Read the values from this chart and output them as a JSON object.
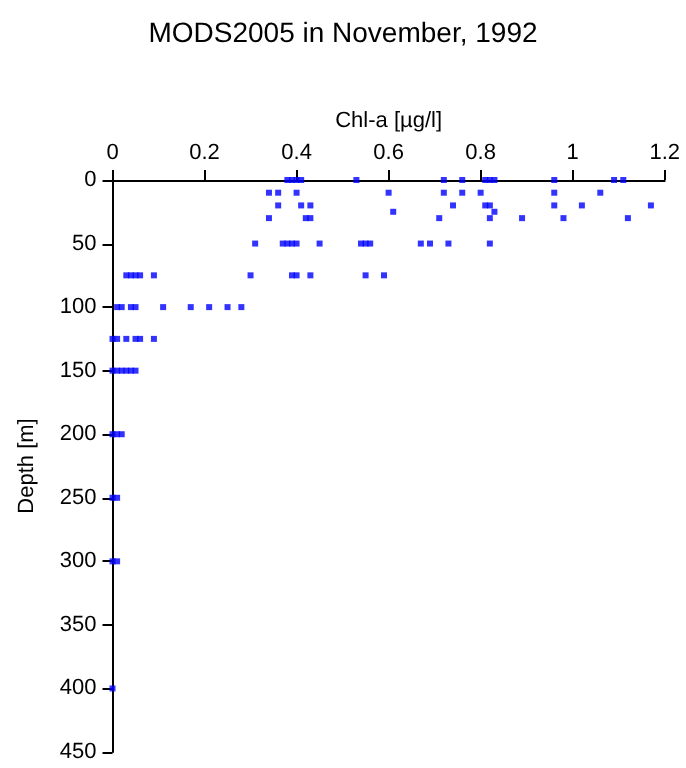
{
  "chart_data": {
    "type": "scatter",
    "title": "MODS2005 in November, 1992",
    "xlabel": "Chl-a [µg/l]",
    "ylabel": "Depth [m]",
    "x": [
      0.38,
      0.39,
      0.4,
      0.41,
      0.53,
      0.72,
      0.76,
      0.81,
      0.82,
      0.83,
      0.96,
      1.09,
      1.11,
      0.34,
      0.36,
      0.4,
      0.6,
      0.72,
      0.76,
      0.8,
      0.96,
      1.06,
      0.36,
      0.41,
      0.43,
      0.74,
      0.81,
      0.82,
      0.96,
      1.02,
      1.17,
      0.61,
      0.83,
      0.34,
      0.42,
      0.43,
      0.71,
      0.82,
      0.89,
      0.98,
      1.12,
      0.31,
      0.37,
      0.38,
      0.39,
      0.4,
      0.45,
      0.54,
      0.55,
      0.56,
      0.67,
      0.69,
      0.73,
      0.82,
      0.03,
      0.04,
      0.05,
      0.06,
      0.09,
      0.3,
      0.39,
      0.4,
      0.43,
      0.55,
      0.59,
      0.01,
      0.02,
      0.04,
      0.05,
      0.11,
      0.17,
      0.21,
      0.25,
      0.28,
      0,
      0.01,
      0.03,
      0.05,
      0.06,
      0.09,
      0,
      0.01,
      0.02,
      0.03,
      0.04,
      0.05,
      0,
      0.01,
      0.02,
      0,
      0.01,
      0,
      0.01,
      0
    ],
    "values": [
      0,
      0,
      0,
      0,
      0,
      0,
      0,
      0,
      0,
      0,
      0,
      0,
      0,
      10,
      10,
      10,
      10,
      10,
      10,
      10,
      10,
      10,
      20,
      20,
      20,
      20,
      20,
      20,
      20,
      20,
      20,
      25,
      25,
      30,
      30,
      30,
      30,
      30,
      30,
      30,
      30,
      50,
      50,
      50,
      50,
      50,
      50,
      50,
      50,
      50,
      50,
      50,
      50,
      50,
      75,
      75,
      75,
      75,
      75,
      75,
      75,
      75,
      75,
      75,
      75,
      100,
      100,
      100,
      100,
      100,
      100,
      100,
      100,
      100,
      125,
      125,
      125,
      125,
      125,
      125,
      150,
      150,
      150,
      150,
      150,
      150,
      200,
      200,
      200,
      250,
      250,
      300,
      300,
      400
    ],
    "color": "#0000ff",
    "marker": "square",
    "xlim": [
      0,
      1.2
    ],
    "xticks": [
      0,
      0.2,
      0.4,
      0.6,
      0.8,
      1,
      1.2
    ],
    "ylim": [
      450,
      0
    ],
    "yticks": [
      0,
      50,
      100,
      150,
      200,
      250,
      300,
      350,
      400,
      450
    ],
    "grid": false
  }
}
